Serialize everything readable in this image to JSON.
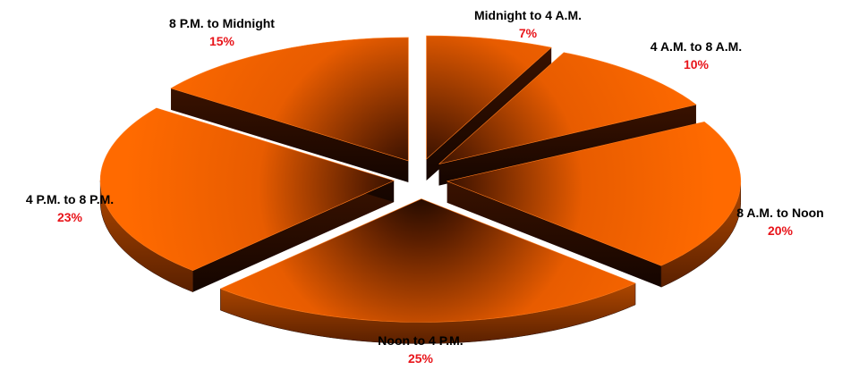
{
  "chart_data": {
    "type": "pie",
    "title": "",
    "categories": [
      "Midnight to 4 A.M.",
      "4 A.M. to 8 A.M.",
      "8 A.M. to Noon",
      "Noon to 4 P.M.",
      "4 P.M. to 8 P.M.",
      "8 P.M. to Midnight"
    ],
    "values": [
      7,
      10,
      20,
      25,
      23,
      15
    ],
    "value_labels": [
      "7%",
      "10%",
      "20%",
      "25%",
      "23%",
      "15%"
    ],
    "exploded": true,
    "three_d": true,
    "legend": "none"
  },
  "colors": {
    "slice_top": "#ff6600",
    "slice_dark": "#1a0700",
    "value_label": "#e8141a"
  }
}
